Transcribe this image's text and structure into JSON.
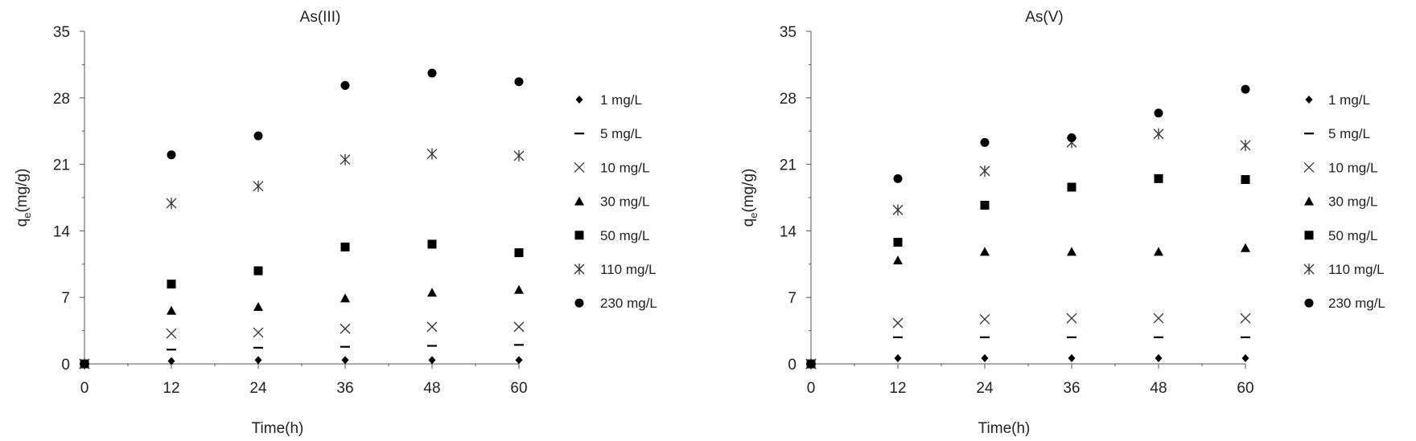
{
  "chart_data": [
    {
      "type": "scatter",
      "title": "As(III)",
      "xlabel": "Time(h)",
      "ylabel_main": "q",
      "ylabel_sub": "e",
      "ylabel_rest": "(mg/g)",
      "x_ticks": [
        0,
        12,
        24,
        36,
        48,
        60
      ],
      "y_ticks": [
        0,
        7,
        14,
        21,
        28,
        35
      ],
      "xlim": [
        0,
        60
      ],
      "ylim": [
        0,
        35
      ],
      "legend_position": "right",
      "series": [
        {
          "name": "1 mg/L",
          "marker": "diamond",
          "x": [
            0,
            12,
            24,
            36,
            48,
            60
          ],
          "y": [
            0,
            0.3,
            0.4,
            0.4,
            0.4,
            0.4
          ]
        },
        {
          "name": "5 mg/L",
          "marker": "dash",
          "x": [
            0,
            12,
            24,
            36,
            48,
            60
          ],
          "y": [
            0,
            1.5,
            1.7,
            1.8,
            1.9,
            2.0
          ]
        },
        {
          "name": "10 mg/L",
          "marker": "x",
          "x": [
            0,
            12,
            24,
            36,
            48,
            60
          ],
          "y": [
            0,
            3.2,
            3.3,
            3.7,
            3.9,
            3.9
          ]
        },
        {
          "name": "30 mg/L",
          "marker": "triangle",
          "x": [
            0,
            12,
            24,
            36,
            48,
            60
          ],
          "y": [
            0,
            5.6,
            6.0,
            6.9,
            7.5,
            7.8
          ]
        },
        {
          "name": "50 mg/L",
          "marker": "square",
          "x": [
            0,
            12,
            24,
            36,
            48,
            60
          ],
          "y": [
            0,
            8.4,
            9.8,
            12.3,
            12.6,
            11.7
          ]
        },
        {
          "name": "110 mg/L",
          "marker": "star",
          "x": [
            0,
            12,
            24,
            36,
            48,
            60
          ],
          "y": [
            0,
            16.9,
            18.7,
            21.5,
            22.1,
            21.9
          ]
        },
        {
          "name": "230 mg/L",
          "marker": "circle",
          "x": [
            0,
            12,
            24,
            36,
            48,
            60
          ],
          "y": [
            0,
            22.0,
            24.0,
            29.3,
            30.6,
            29.7
          ]
        }
      ]
    },
    {
      "type": "scatter",
      "title": "As(V)",
      "xlabel": "Time(h)",
      "ylabel_main": "q",
      "ylabel_sub": "e",
      "ylabel_rest": "(mg/g)",
      "x_ticks": [
        0,
        12,
        24,
        36,
        48,
        60
      ],
      "y_ticks": [
        0,
        7,
        14,
        21,
        28,
        35
      ],
      "xlim": [
        0,
        60
      ],
      "ylim": [
        0,
        35
      ],
      "legend_position": "right",
      "series": [
        {
          "name": "1 mg/L",
          "marker": "diamond",
          "x": [
            0,
            12,
            24,
            36,
            48,
            60
          ],
          "y": [
            0,
            0.6,
            0.6,
            0.6,
            0.6,
            0.6
          ]
        },
        {
          "name": "5 mg/L",
          "marker": "dash",
          "x": [
            0,
            12,
            24,
            36,
            48,
            60
          ],
          "y": [
            0,
            2.8,
            2.8,
            2.8,
            2.8,
            2.8
          ]
        },
        {
          "name": "10 mg/L",
          "marker": "x",
          "x": [
            0,
            12,
            24,
            36,
            48,
            60
          ],
          "y": [
            0,
            4.3,
            4.7,
            4.8,
            4.8,
            4.8
          ]
        },
        {
          "name": "30 mg/L",
          "marker": "triangle",
          "x": [
            0,
            12,
            24,
            36,
            48,
            60
          ],
          "y": [
            0,
            10.9,
            11.8,
            11.8,
            11.8,
            12.2
          ]
        },
        {
          "name": "50 mg/L",
          "marker": "square",
          "x": [
            0,
            12,
            24,
            36,
            48,
            60
          ],
          "y": [
            0,
            12.8,
            16.7,
            18.6,
            19.5,
            19.4
          ]
        },
        {
          "name": "110 mg/L",
          "marker": "star",
          "x": [
            0,
            12,
            24,
            36,
            48,
            60
          ],
          "y": [
            0,
            16.2,
            20.3,
            23.3,
            24.2,
            23.0
          ]
        },
        {
          "name": "230 mg/L",
          "marker": "circle",
          "x": [
            0,
            12,
            24,
            36,
            48,
            60
          ],
          "y": [
            0,
            19.5,
            23.3,
            23.8,
            26.4,
            28.9
          ]
        }
      ]
    }
  ],
  "colors": {
    "marker": "#000000",
    "axis": "#555555",
    "text": "#222222"
  }
}
